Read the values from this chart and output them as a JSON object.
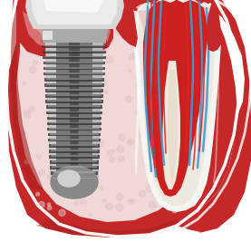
{
  "bg_color": "#ffffff",
  "gum_red": "#c42828",
  "gum_dark_red": "#a82020",
  "gum_pink_inner": "#e8b8b8",
  "gum_pink_light": "#f0d0d0",
  "bone_pink": "#f0d8d8",
  "implant_mid": "#888888",
  "implant_light": "#c0c0c0",
  "implant_dark": "#505050",
  "implant_vlight": "#e0e0e0",
  "thread_dark": "#383838",
  "thread_light": "#b0b0b0",
  "crown_base": "#d8d8d8",
  "crown_mid": "#ebebeb",
  "crown_bright": "#f8f8f8",
  "crown_white": "#ffffff",
  "tooth_enamel": "#f4f4f0",
  "tooth_white": "#ffffff",
  "tooth_dentin": "#ede8e0",
  "pulp_red": "#cc2020",
  "pulp_dark_red": "#aa1515",
  "nerve_blue": "#4499cc",
  "nerve_light_blue": "#66bbdd",
  "nerve_red": "#dd2222",
  "gum_groove_pink": "#e09090",
  "collar_silver": "#aaaaaa",
  "figsize": [
    2.77,
    2.67
  ],
  "dpi": 100
}
